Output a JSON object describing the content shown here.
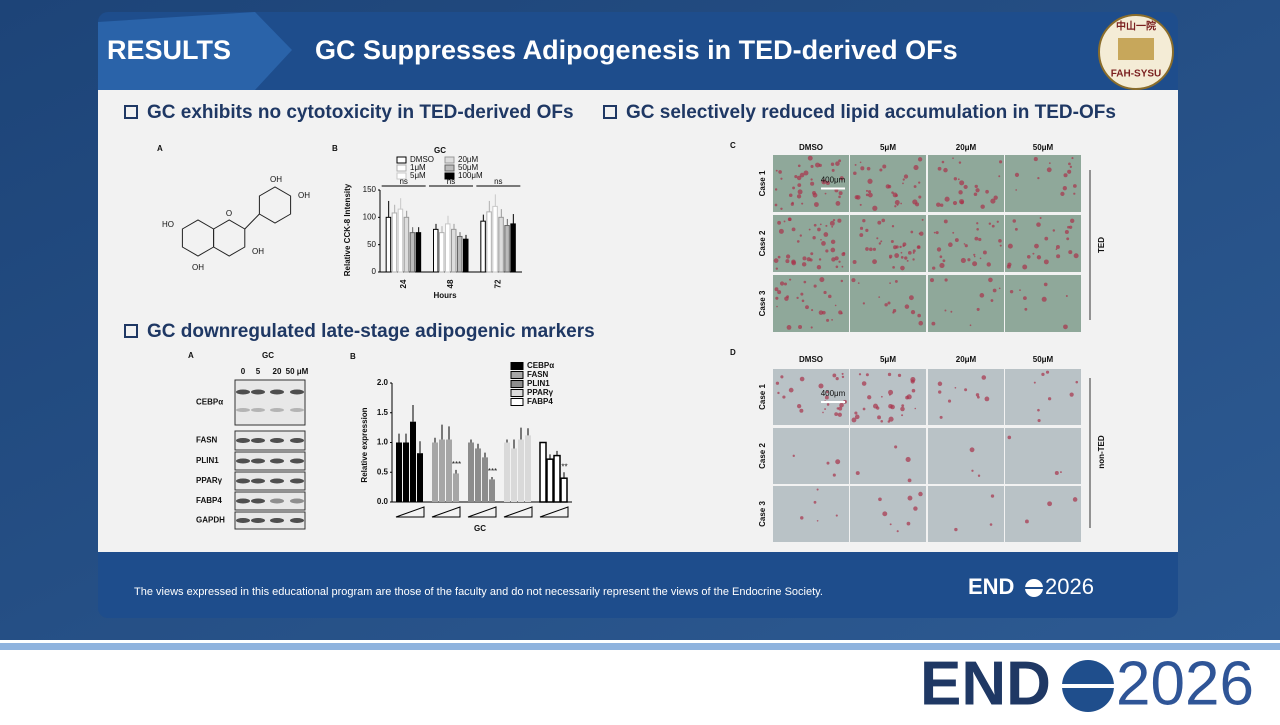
{
  "header": {
    "tag": "RESULTS",
    "title": "GC Suppresses Adipogenesis in TED-derived OFs",
    "logo_top": "中山一院",
    "logo_bottom": "FAH-SYSU"
  },
  "sections": [
    {
      "heading": "GC exhibits no cytotoxicity in TED-derived OFs"
    },
    {
      "heading": "GC downregulated late-stage adipogenic markers"
    },
    {
      "heading": "GC selectively reduced lipid accumulation in TED-OFs"
    }
  ],
  "structure": {
    "panel": "A",
    "labels": [
      "OH",
      "OH",
      "HO",
      "O",
      "OH",
      "OH"
    ]
  },
  "cck8": {
    "panel": "B",
    "type": "bar",
    "title": "GC",
    "y_label": "Relative CCK-8 Intensity",
    "x_label": "Hours",
    "categories": [
      "24",
      "48",
      "72"
    ],
    "series": [
      {
        "name": "DMSO",
        "color": "#ffffff",
        "stroke": "#000000",
        "values": [
          100,
          78,
          93
        ],
        "errors": [
          30,
          10,
          12
        ]
      },
      {
        "name": "1μM",
        "color": "#ffffff",
        "stroke": "#b0b0b0",
        "values": [
          108,
          72,
          110
        ],
        "errors": [
          15,
          12,
          20
        ]
      },
      {
        "name": "5μM",
        "color": "#ffffff",
        "stroke": "#c8c8c8",
        "values": [
          115,
          88,
          120
        ],
        "errors": [
          20,
          15,
          22
        ]
      },
      {
        "name": "20μM",
        "color": "#dddddd",
        "stroke": "#999999",
        "values": [
          100,
          78,
          100
        ],
        "errors": [
          12,
          10,
          15
        ]
      },
      {
        "name": "50μM",
        "color": "#bbbbbb",
        "stroke": "#666666",
        "values": [
          72,
          65,
          85
        ],
        "errors": [
          10,
          8,
          12
        ]
      },
      {
        "name": "100μM",
        "color": "#000000",
        "stroke": "#000000",
        "values": [
          72,
          60,
          88
        ],
        "errors": [
          10,
          8,
          18
        ]
      }
    ],
    "comparisons": [
      "ns",
      "ns",
      "ns"
    ],
    "ylim": [
      0,
      150
    ],
    "yticks": [
      0,
      50,
      100,
      150
    ]
  },
  "western": {
    "panel": "A",
    "title": "GC",
    "doses": [
      "0",
      "5",
      "20",
      "50 μM"
    ],
    "rows": [
      "CEBPα",
      "FASN",
      "PLIN1",
      "PPARγ",
      "FABP4",
      "GAPDH"
    ]
  },
  "expression": {
    "panel": "B",
    "type": "bar",
    "y_label": "Relative expression",
    "x_label": "GC",
    "series": [
      {
        "name": "CEBPα",
        "color": "#000000",
        "values": [
          1.0,
          1.0,
          1.35,
          0.82
        ],
        "errors": [
          0.15,
          0.15,
          0.28,
          0.2
        ]
      },
      {
        "name": "FASN",
        "color": "#a6a6a6",
        "values": [
          1.0,
          1.05,
          1.05,
          0.48
        ],
        "errors": [
          0.08,
          0.25,
          0.22,
          0.06
        ],
        "significance": "***"
      },
      {
        "name": "PLIN1",
        "color": "#8c8c8c",
        "values": [
          1.0,
          0.9,
          0.75,
          0.38
        ],
        "errors": [
          0.05,
          0.08,
          0.08,
          0.04
        ],
        "significance": "***"
      },
      {
        "name": "PPARγ",
        "color": "#d9d9d9",
        "values": [
          1.0,
          0.9,
          1.05,
          1.12
        ],
        "errors": [
          0.05,
          0.15,
          0.2,
          0.12
        ]
      },
      {
        "name": "FABP4",
        "color": "#ffffff",
        "values": [
          1.0,
          0.72,
          0.78,
          0.4
        ],
        "errors": [
          0,
          0.08,
          0.08,
          0.1
        ],
        "significance": "**"
      }
    ],
    "ylim": [
      0,
      2.0
    ],
    "yticks": [
      {
        "value": 0,
        "label": "0.0"
      },
      {
        "value": 0.5,
        "label": "0.5"
      },
      {
        "value": 1.0,
        "label": "1.0"
      },
      {
        "value": 1.5,
        "label": "1.5"
      },
      {
        "value": 2.0,
        "label": "2.0"
      }
    ]
  },
  "lipid_ted": {
    "panel": "C",
    "columns": [
      "DMSO",
      "5μM",
      "20μM",
      "50μM"
    ],
    "rows": [
      "Case 1",
      "Case 2",
      "Case 3"
    ],
    "scale": "400μm",
    "group": "TED"
  },
  "lipid_nonted": {
    "panel": "D",
    "columns": [
      "DMSO",
      "5μM",
      "20μM",
      "50μM"
    ],
    "rows": [
      "Case 1",
      "Case 2",
      "Case 3"
    ],
    "scale": "400μm",
    "group": "non-TED"
  },
  "footer": {
    "disclaimer": "The views expressed in this educational program are those of the faculty and do not necessarily represent the views of the Endocrine Society.",
    "brand_left": "END",
    "brand_right": "2026"
  }
}
